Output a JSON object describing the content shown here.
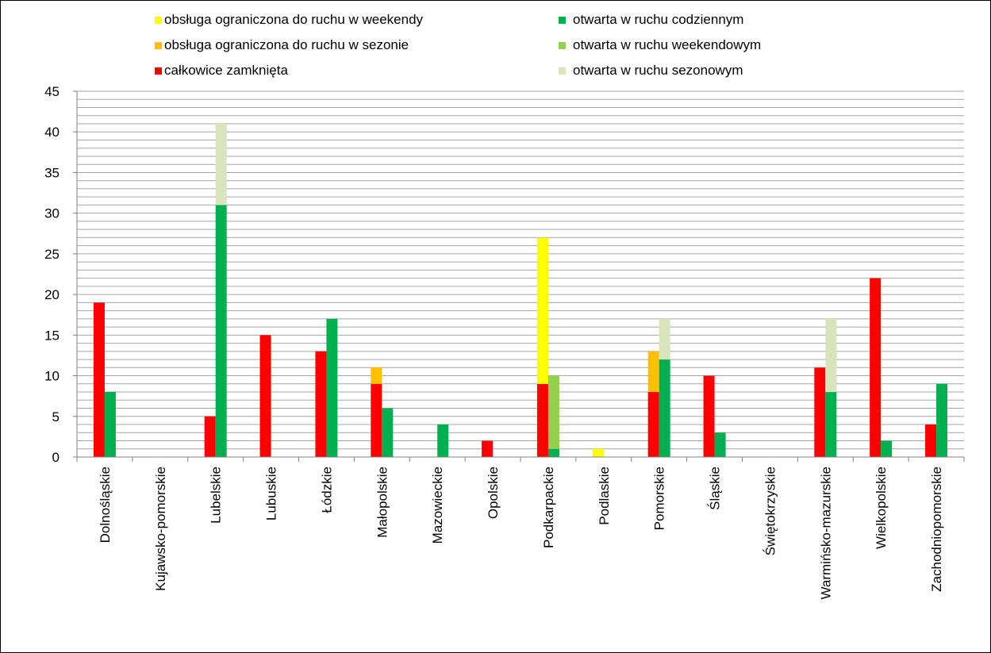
{
  "chart_data": {
    "type": "bar",
    "stacked": true,
    "grouped": true,
    "title": "",
    "xlabel": "",
    "ylabel": "",
    "ylim": [
      0,
      45
    ],
    "yticks": [
      0,
      5,
      10,
      15,
      20,
      25,
      30,
      35,
      40,
      45
    ],
    "grid": true,
    "legend_position": "top",
    "categories": [
      "Dolnośląskie",
      "Kujawsko-pomorskie",
      "Lubelskie",
      "Lubuskie",
      "Łódzkie",
      "Małopolskie",
      "Mazowieckie",
      "Opolskie",
      "Podkarpackie",
      "Podlaskie",
      "Pomorskie",
      "Śląskie",
      "Świętokrzyskie",
      "Warmińsko-mazurskie",
      "Wielkopolskie",
      "Zachodniopomorskie"
    ],
    "series": [
      {
        "name": "całkowice zamknięta",
        "stack": "left",
        "color": "#ff0000",
        "values": [
          19,
          0,
          5,
          15,
          13,
          9,
          0,
          2,
          9,
          0,
          8,
          10,
          0,
          11,
          22,
          4
        ]
      },
      {
        "name": "obsługa ograniczona do ruchu w sezonie",
        "stack": "left",
        "color": "#ffc000",
        "values": [
          0,
          0,
          0,
          0,
          0,
          2,
          0,
          0,
          0,
          0,
          5,
          0,
          0,
          0,
          0,
          0
        ]
      },
      {
        "name": "obsługa ograniczona do ruchu w weekendy",
        "stack": "left",
        "color": "#ffff00",
        "values": [
          0,
          0,
          0,
          0,
          0,
          0,
          0,
          0,
          18,
          1,
          0,
          0,
          0,
          0,
          0,
          0
        ]
      },
      {
        "name": "otwarta w ruchu codziennym",
        "stack": "right",
        "color": "#00b050",
        "values": [
          8,
          0,
          31,
          0,
          17,
          6,
          4,
          0,
          1,
          0,
          12,
          3,
          0,
          8,
          2,
          9
        ]
      },
      {
        "name": "otwarta w ruchu weekendowym",
        "stack": "right",
        "color": "#92d050",
        "values": [
          0,
          0,
          0,
          0,
          0,
          0,
          0,
          0,
          9,
          0,
          0,
          0,
          0,
          0,
          0,
          0
        ]
      },
      {
        "name": "otwarta w ruchu sezonowym",
        "stack": "right",
        "color": "#d8e4bc",
        "values": [
          0,
          0,
          10,
          0,
          0,
          0,
          0,
          0,
          0,
          0,
          5,
          0,
          0,
          9,
          0,
          0
        ]
      }
    ],
    "legend": [
      {
        "label": "obsługa ograniczona do ruchu w weekendy",
        "color": "#ffff00"
      },
      {
        "label": "obsługa ograniczona do ruchu w sezonie",
        "color": "#ffc000"
      },
      {
        "label": "całkowice zamknięta",
        "color": "#ff0000"
      },
      {
        "label": "otwarta w ruchu codziennym",
        "color": "#00b050"
      },
      {
        "label": "otwarta w ruchu weekendowym",
        "color": "#92d050"
      },
      {
        "label": "otwarta w ruchu sezonowym",
        "color": "#d8e4bc"
      }
    ],
    "colors": {
      "gridline": "#a6a6a6",
      "axis": "#808080",
      "text": "#000000"
    }
  }
}
